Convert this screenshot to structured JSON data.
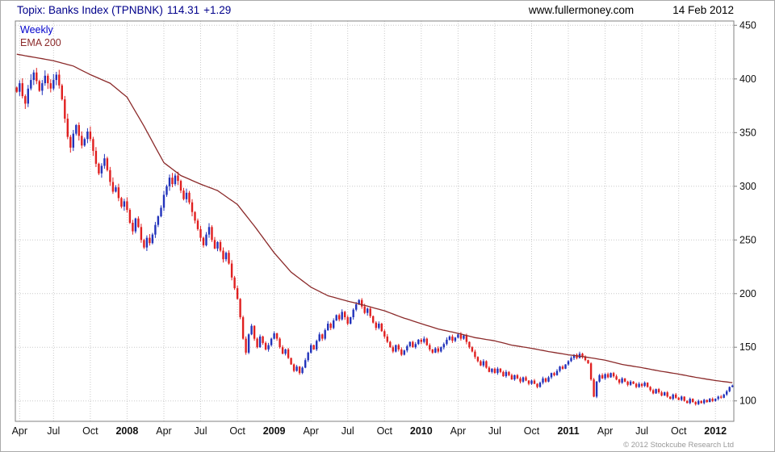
{
  "header": {
    "title": "Topix: Banks Index (TPNBNK)",
    "price": "114.31",
    "change": "+1.29",
    "website": "www.fullermoney.com",
    "date": "14 Feb 2012"
  },
  "footer": {
    "copyright": "© 2012 Stockcube Research Ltd"
  },
  "chart_data": {
    "type": "candlestick",
    "title": "Topix: Banks Index (TPNBNK)",
    "frequency": "Weekly",
    "overlay": "EMA 200",
    "last": 114.31,
    "change": 1.29,
    "ylim": [
      81,
      454
    ],
    "yticks": [
      100,
      150,
      200,
      250,
      300,
      350,
      400,
      450
    ],
    "xticks": [
      {
        "label": "Apr",
        "week": 1,
        "bold": false
      },
      {
        "label": "Jul",
        "week": 13,
        "bold": false
      },
      {
        "label": "Oct",
        "week": 26,
        "bold": false
      },
      {
        "label": "2008",
        "week": 39,
        "bold": true
      },
      {
        "label": "Apr",
        "week": 52,
        "bold": false
      },
      {
        "label": "Jul",
        "week": 65,
        "bold": false
      },
      {
        "label": "Oct",
        "week": 78,
        "bold": false
      },
      {
        "label": "2009",
        "week": 91,
        "bold": true
      },
      {
        "label": "Apr",
        "week": 104,
        "bold": false
      },
      {
        "label": "Jul",
        "week": 117,
        "bold": false
      },
      {
        "label": "Oct",
        "week": 130,
        "bold": false
      },
      {
        "label": "2010",
        "week": 143,
        "bold": true
      },
      {
        "label": "Apr",
        "week": 156,
        "bold": false
      },
      {
        "label": "Jul",
        "week": 169,
        "bold": false
      },
      {
        "label": "Oct",
        "week": 182,
        "bold": false
      },
      {
        "label": "2011",
        "week": 195,
        "bold": true
      },
      {
        "label": "Apr",
        "week": 208,
        "bold": false
      },
      {
        "label": "Jul",
        "week": 221,
        "bold": false
      },
      {
        "label": "Oct",
        "week": 234,
        "bold": false
      },
      {
        "label": "2012",
        "week": 247,
        "bold": true
      }
    ],
    "closes": [
      388,
      396,
      384,
      377,
      391,
      399,
      406,
      398,
      389,
      396,
      403,
      396,
      391,
      399,
      404,
      394,
      381,
      363,
      346,
      336,
      349,
      357,
      347,
      338,
      344,
      351,
      344,
      333,
      321,
      312,
      319,
      326,
      315,
      304,
      295,
      299,
      289,
      281,
      286,
      278,
      266,
      258,
      270,
      262,
      250,
      243,
      252,
      247,
      255,
      264,
      272,
      280,
      292,
      300,
      308,
      302,
      310,
      305,
      296,
      288,
      294,
      285,
      276,
      268,
      260,
      252,
      245,
      255,
      262,
      250,
      242,
      248,
      240,
      232,
      238,
      228,
      215,
      205,
      195,
      178,
      158,
      145,
      162,
      170,
      158,
      150,
      160,
      154,
      148,
      152,
      158,
      163,
      158,
      150,
      144,
      148,
      140,
      134,
      128,
      132,
      126,
      131,
      138,
      145,
      152,
      148,
      156,
      162,
      158,
      166,
      172,
      168,
      175,
      180,
      176,
      183,
      178,
      172,
      178,
      185,
      190,
      194,
      188,
      182,
      186,
      179,
      173,
      168,
      172,
      165,
      160,
      155,
      150,
      146,
      152,
      148,
      143,
      147,
      151,
      155,
      150,
      153,
      157,
      155,
      158,
      152,
      148,
      145,
      149,
      146,
      150,
      153,
      157,
      160,
      156,
      159,
      162,
      158,
      161,
      155,
      150,
      146,
      141,
      137,
      133,
      137,
      131,
      127,
      130,
      126,
      130,
      127,
      123,
      127,
      124,
      120,
      124,
      121,
      118,
      122,
      119,
      116,
      119,
      116,
      113,
      117,
      121,
      118,
      122,
      126,
      124,
      128,
      132,
      130,
      134,
      137,
      140,
      143,
      140,
      144,
      141,
      138,
      135,
      120,
      104,
      118,
      124,
      121,
      125,
      122,
      126,
      123,
      120,
      117,
      121,
      118,
      115,
      118,
      116,
      113,
      116,
      114,
      117,
      113,
      110,
      107,
      111,
      108,
      105,
      108,
      104,
      102,
      106,
      103,
      101,
      104,
      100,
      98,
      102,
      99,
      97,
      100,
      98,
      101,
      99,
      102,
      100,
      102,
      104,
      103,
      106,
      109,
      113.02,
      114.31
    ],
    "ema_anchors": [
      [
        0,
        423
      ],
      [
        13,
        417
      ],
      [
        20,
        412
      ],
      [
        26,
        404
      ],
      [
        33,
        396
      ],
      [
        39,
        383
      ],
      [
        45,
        356
      ],
      [
        52,
        322
      ],
      [
        58,
        310
      ],
      [
        65,
        302
      ],
      [
        71,
        296
      ],
      [
        78,
        283
      ],
      [
        84,
        263
      ],
      [
        91,
        238
      ],
      [
        97,
        220
      ],
      [
        104,
        206
      ],
      [
        110,
        198
      ],
      [
        117,
        193
      ],
      [
        123,
        189
      ],
      [
        130,
        184
      ],
      [
        136,
        178
      ],
      [
        143,
        172
      ],
      [
        149,
        167
      ],
      [
        156,
        163
      ],
      [
        162,
        159
      ],
      [
        169,
        156
      ],
      [
        175,
        152
      ],
      [
        182,
        149
      ],
      [
        188,
        146
      ],
      [
        195,
        143
      ],
      [
        201,
        141
      ],
      [
        208,
        138
      ],
      [
        214,
        134
      ],
      [
        221,
        131
      ],
      [
        227,
        128
      ],
      [
        234,
        125
      ],
      [
        240,
        122
      ],
      [
        247,
        119
      ],
      [
        253,
        117
      ]
    ],
    "colors": {
      "up": "#2233bb",
      "down": "#e02020",
      "ema": "#8b2a2a",
      "grid": "#c9c9c9",
      "axis": "#808080",
      "title": "#00008b"
    }
  }
}
